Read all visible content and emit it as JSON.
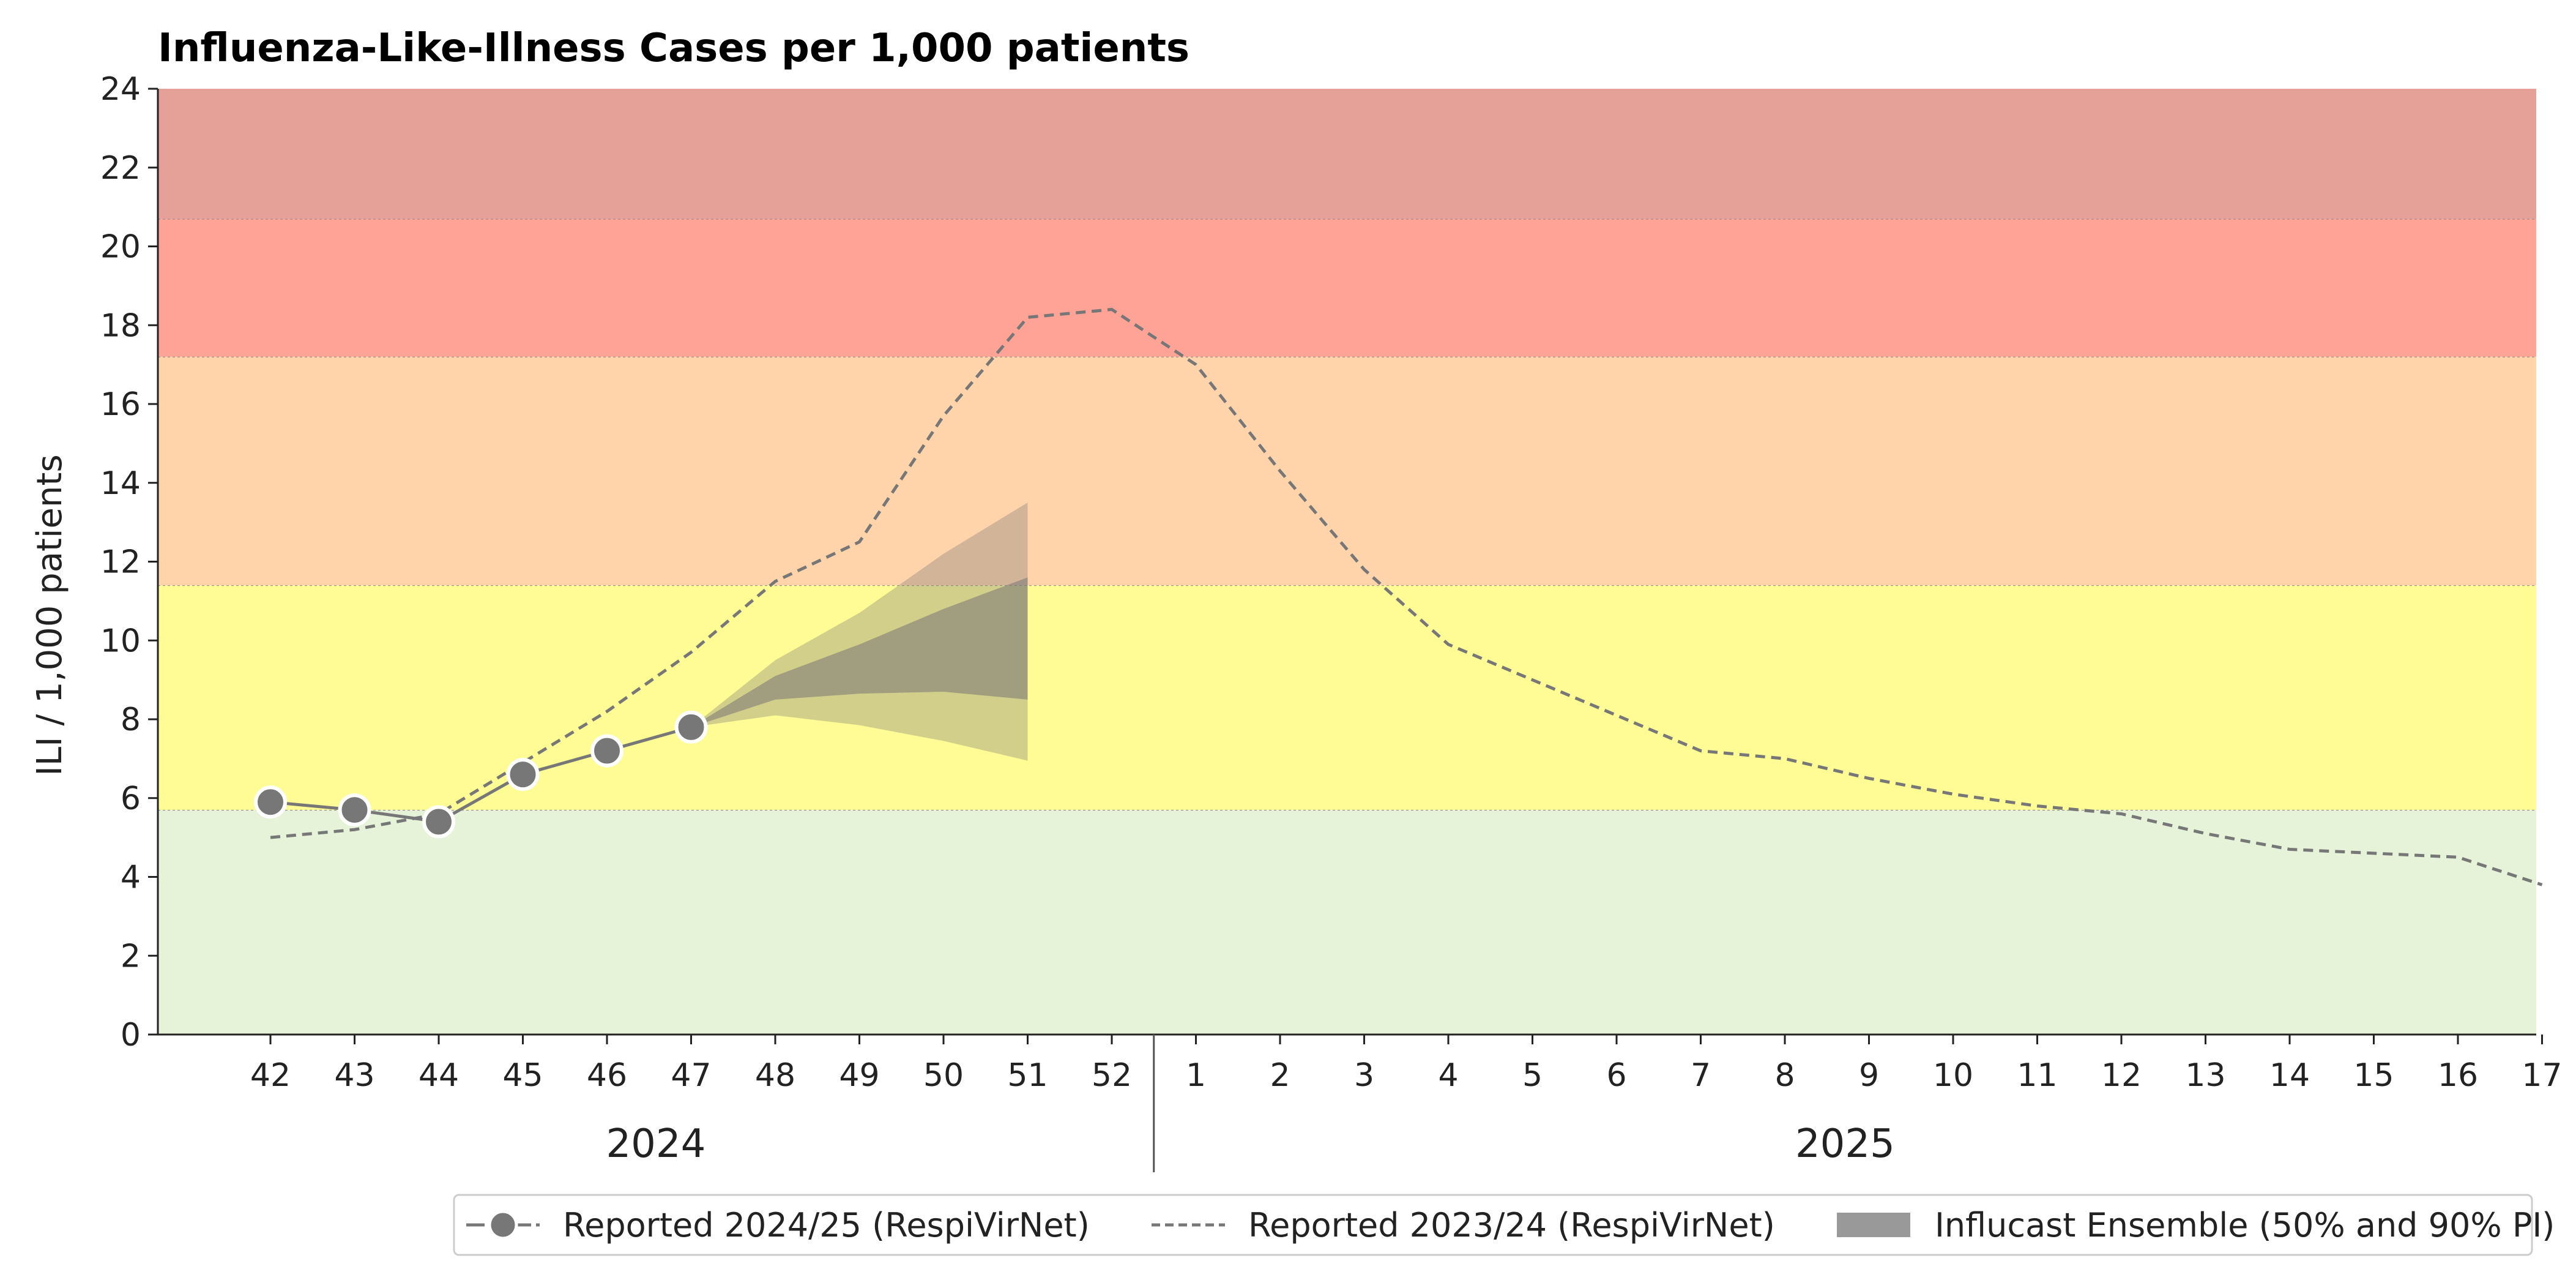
{
  "chart_data": {
    "type": "line",
    "title": "Influenza-Like-Illness Cases per 1,000 patients",
    "xlabel": "",
    "ylabel": "ILI / 1,000 patients",
    "ylim": [
      0,
      24
    ],
    "yticks": [
      0,
      2,
      4,
      6,
      8,
      10,
      12,
      14,
      16,
      18,
      20,
      22,
      24
    ],
    "weeks": [
      "42",
      "43",
      "44",
      "45",
      "46",
      "47",
      "48",
      "49",
      "50",
      "51",
      "52",
      "1",
      "2",
      "3",
      "4",
      "5",
      "6",
      "7",
      "8",
      "9",
      "10",
      "11",
      "12",
      "13",
      "14",
      "15",
      "16",
      "17"
    ],
    "year_labels": [
      {
        "label": "2024",
        "from_week_index": 0,
        "to_week_index": 10
      },
      {
        "label": "2025",
        "from_week_index": 11,
        "to_week_index": 27
      }
    ],
    "threshold_bands": [
      {
        "from": 0,
        "to": 5.7,
        "color": "#e7f3d9"
      },
      {
        "from": 5.7,
        "to": 11.4,
        "color": "#fffb95"
      },
      {
        "from": 11.4,
        "to": 17.2,
        "color": "#ffd4aa"
      },
      {
        "from": 17.2,
        "to": 20.7,
        "color": "#ffa396"
      },
      {
        "from": 20.7,
        "to": 24,
        "color": "#e5a097"
      }
    ],
    "series": [
      {
        "name": "Reported 2024/25 (RespiVirNet)",
        "style": "solid-markers",
        "color": "#777777",
        "values": [
          5.9,
          5.7,
          5.4,
          6.6,
          7.2,
          7.8
        ]
      },
      {
        "name": "Reported 2023/24 (RespiVirNet)",
        "style": "dashed",
        "color": "#777777",
        "values": [
          5.0,
          5.2,
          5.6,
          6.9,
          8.2,
          9.7,
          11.5,
          12.5,
          15.7,
          18.2,
          18.4,
          17.0,
          14.3,
          11.8,
          9.9,
          9.0,
          8.1,
          7.2,
          7.0,
          6.5,
          6.1,
          5.8,
          5.6,
          5.1,
          4.7,
          4.6,
          4.5,
          3.8
        ]
      }
    ],
    "forecast": {
      "name": "Influcast Ensemble (50% and 90% PI)",
      "color": "#777777",
      "week_indices": [
        5,
        6,
        7,
        8,
        9
      ],
      "pi90_lower": [
        7.8,
        8.1,
        7.85,
        7.45,
        6.95
      ],
      "pi90_upper": [
        7.8,
        9.5,
        10.7,
        12.2,
        13.5
      ],
      "pi50_lower": [
        7.8,
        8.5,
        8.65,
        8.7,
        8.5
      ],
      "pi50_upper": [
        7.8,
        9.1,
        9.9,
        10.8,
        11.6
      ]
    },
    "legend": {
      "position": "bottom-right",
      "entries": [
        "Reported 2024/25 (RespiVirNet)",
        "Reported 2023/24 (RespiVirNet)",
        "Influcast Ensemble (50% and 90% PI)"
      ]
    },
    "grid": false
  }
}
